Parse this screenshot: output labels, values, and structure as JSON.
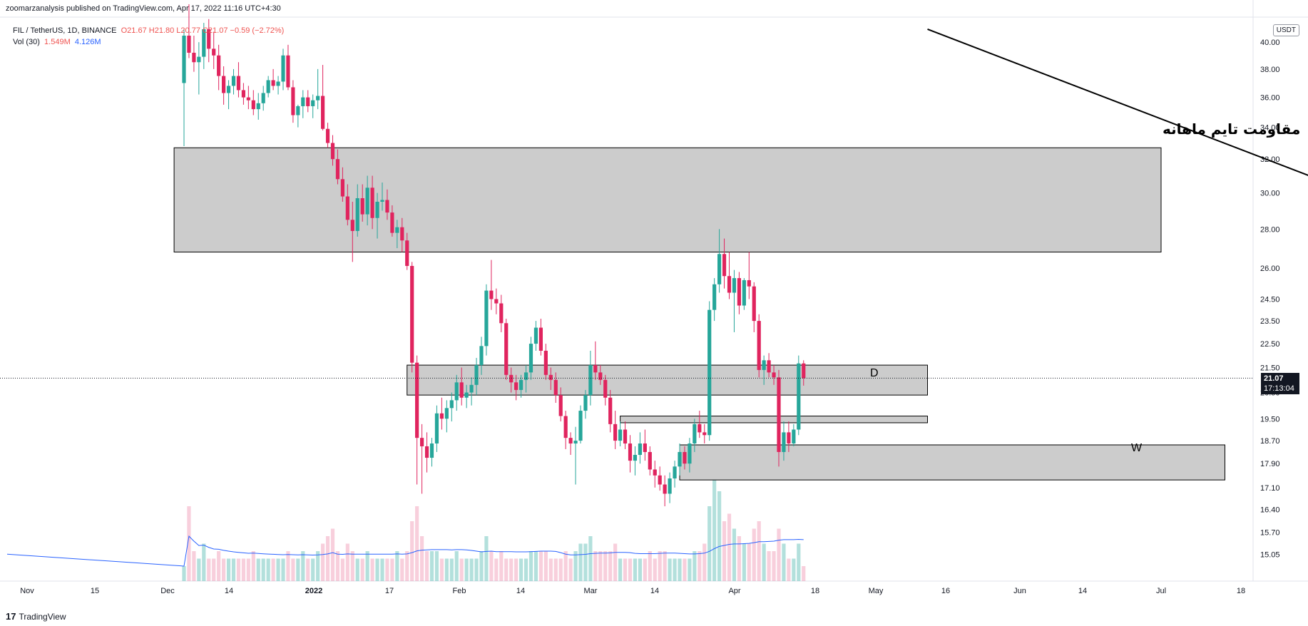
{
  "header": {
    "published": "zoomarzanalysis published on TradingView.com, Apr 17, 2022 11:16 UTC+4:30"
  },
  "legend": {
    "symbol": "FIL / TetherUS, 1D, BINANCE",
    "ohlc": "O21.67 H21.80 L20.77 C21.07 −0.59 (−2.72%)",
    "vol_label": "Vol (30)",
    "vol_value": "1.549M",
    "vol_ma": "4.126M"
  },
  "axis": {
    "currency_badge": "USDT",
    "price_ticks": [
      "40.00",
      "38.00",
      "36.00",
      "34.00",
      "32.00",
      "30.00",
      "28.00",
      "26.00",
      "24.50",
      "23.50",
      "22.50",
      "21.50",
      "20.50",
      "19.50",
      "18.70",
      "17.90",
      "17.10",
      "16.40",
      "15.70",
      "15.05"
    ],
    "time_ticks": [
      "Nov",
      "15",
      "Dec",
      "14",
      "2022",
      "17",
      "Feb",
      "14",
      "Mar",
      "14",
      "Apr",
      "18",
      "May",
      "16",
      "Jun",
      "14",
      "Jul",
      "18"
    ],
    "current_price": "21.07",
    "countdown": "17:13:04"
  },
  "annotations": {
    "resistance_label": "مقاومت تایم ماهانه",
    "zone_d_label": "D",
    "zone_w_label": "W"
  },
  "footer": {
    "brand": "TradingView",
    "logo_glyph": "17"
  },
  "colors": {
    "up": "#26a69a",
    "down": "#e0245e",
    "zone_fill": "#cccccc",
    "vol_ma": "#2962ff"
  },
  "chart_data": {
    "type": "candlestick",
    "symbol": "FIL / TetherUS",
    "interval": "1D",
    "exchange": "BINANCE",
    "scale": "log",
    "ylim": [
      14.7,
      40.5
    ],
    "y_ticks": [
      40,
      38,
      36,
      34,
      32,
      30,
      28,
      26,
      24.5,
      23.5,
      22.5,
      21.5,
      20.5,
      19.5,
      18.7,
      17.9,
      17.1,
      16.4,
      15.7,
      15.05
    ],
    "last": {
      "open": 21.67,
      "high": 21.8,
      "low": 20.77,
      "close": 21.07,
      "change": -0.59,
      "change_pct": -2.72
    },
    "start_date": "2021-12-04",
    "ohlc": [
      [
        37.0,
        41.0,
        32.8,
        40.5
      ],
      [
        40.5,
        43.0,
        38.8,
        39.2
      ],
      [
        39.2,
        40.5,
        37.8,
        38.5
      ],
      [
        38.5,
        40.0,
        36.2,
        38.9
      ],
      [
        38.9,
        41.5,
        38.0,
        41.0
      ],
      [
        41.0,
        41.8,
        38.5,
        39.5
      ],
      [
        39.5,
        40.8,
        38.0,
        39.0
      ],
      [
        39.0,
        39.8,
        36.5,
        37.5
      ],
      [
        37.5,
        38.2,
        35.5,
        36.3
      ],
      [
        36.3,
        37.2,
        35.2,
        36.8
      ],
      [
        36.8,
        38.0,
        36.2,
        37.5
      ],
      [
        37.5,
        38.5,
        36.0,
        36.5
      ],
      [
        36.5,
        37.0,
        35.5,
        36.0
      ],
      [
        36.0,
        36.8,
        35.2,
        35.8
      ],
      [
        35.8,
        36.5,
        34.8,
        35.2
      ],
      [
        35.2,
        36.3,
        34.5,
        35.6
      ],
      [
        35.6,
        36.8,
        35.1,
        36.3
      ],
      [
        36.3,
        37.5,
        36.0,
        37.2
      ],
      [
        37.2,
        38.0,
        36.5,
        36.8
      ],
      [
        36.8,
        37.5,
        36.2,
        37.1
      ],
      [
        37.1,
        39.5,
        36.5,
        39.0
      ],
      [
        39.0,
        39.8,
        36.5,
        36.7
      ],
      [
        36.7,
        37.2,
        34.3,
        34.8
      ],
      [
        34.8,
        35.5,
        34.0,
        35.4
      ],
      [
        35.4,
        36.5,
        34.6,
        36.0
      ],
      [
        36.0,
        36.5,
        35.0,
        35.4
      ],
      [
        35.4,
        36.2,
        34.6,
        35.8
      ],
      [
        35.8,
        38.0,
        35.2,
        36.1
      ],
      [
        36.1,
        38.3,
        33.8,
        33.9
      ],
      [
        33.9,
        34.3,
        32.7,
        33.0
      ],
      [
        33.0,
        33.5,
        31.6,
        32.0
      ],
      [
        32.0,
        32.6,
        30.5,
        30.8
      ],
      [
        30.8,
        31.5,
        29.5,
        29.8
      ],
      [
        29.8,
        30.5,
        28.2,
        28.5
      ],
      [
        28.5,
        29.5,
        26.3,
        27.9
      ],
      [
        27.9,
        30.5,
        27.6,
        29.7
      ],
      [
        29.7,
        30.5,
        28.4,
        28.8
      ],
      [
        28.8,
        31.0,
        28.2,
        30.3
      ],
      [
        30.3,
        31.0,
        28.0,
        28.6
      ],
      [
        28.6,
        30.0,
        27.5,
        29.5
      ],
      [
        29.5,
        30.6,
        29.0,
        29.6
      ],
      [
        29.6,
        30.2,
        28.5,
        28.9
      ],
      [
        28.9,
        29.3,
        27.6,
        27.8
      ],
      [
        27.8,
        28.5,
        27.0,
        28.1
      ],
      [
        28.1,
        28.6,
        26.8,
        27.4
      ],
      [
        27.4,
        27.8,
        25.9,
        26.1
      ],
      [
        26.1,
        26.3,
        21.3,
        21.7
      ],
      [
        21.7,
        22.0,
        17.2,
        18.8
      ],
      [
        18.8,
        19.3,
        16.9,
        18.5
      ],
      [
        18.5,
        19.0,
        17.6,
        18.1
      ],
      [
        18.1,
        18.8,
        17.8,
        18.6
      ],
      [
        18.6,
        20.0,
        18.3,
        19.7
      ],
      [
        19.7,
        20.3,
        19.1,
        19.5
      ],
      [
        19.5,
        20.2,
        19.0,
        19.9
      ],
      [
        19.9,
        20.5,
        19.4,
        20.2
      ],
      [
        20.2,
        21.2,
        19.8,
        20.9
      ],
      [
        20.9,
        21.5,
        20.0,
        20.3
      ],
      [
        20.3,
        20.8,
        19.9,
        20.5
      ],
      [
        20.5,
        21.1,
        20.0,
        20.8
      ],
      [
        20.8,
        21.9,
        20.4,
        21.6
      ],
      [
        21.6,
        22.8,
        21.2,
        22.4
      ],
      [
        22.4,
        25.2,
        22.0,
        24.9
      ],
      [
        24.9,
        26.4,
        24.0,
        24.5
      ],
      [
        24.5,
        25.0,
        23.8,
        24.3
      ],
      [
        24.3,
        24.7,
        23.0,
        23.4
      ],
      [
        23.4,
        23.6,
        21.0,
        21.2
      ],
      [
        21.2,
        21.5,
        20.5,
        20.9
      ],
      [
        20.9,
        21.2,
        20.2,
        20.6
      ],
      [
        20.6,
        21.2,
        20.3,
        21.0
      ],
      [
        21.0,
        21.6,
        20.5,
        21.3
      ],
      [
        21.3,
        22.8,
        21.0,
        22.5
      ],
      [
        22.5,
        23.5,
        22.2,
        23.2
      ],
      [
        23.2,
        23.6,
        22.0,
        22.2
      ],
      [
        22.2,
        22.5,
        21.0,
        21.2
      ],
      [
        21.2,
        21.5,
        20.6,
        21.0
      ],
      [
        21.0,
        21.3,
        20.1,
        20.4
      ],
      [
        20.4,
        20.7,
        19.4,
        19.6
      ],
      [
        19.6,
        19.8,
        18.4,
        18.8
      ],
      [
        18.8,
        19.0,
        18.2,
        18.6
      ],
      [
        18.6,
        19.2,
        17.2,
        18.7
      ],
      [
        18.7,
        20.0,
        18.6,
        19.8
      ],
      [
        19.8,
        20.6,
        19.5,
        20.4
      ],
      [
        20.4,
        22.2,
        20.0,
        21.6
      ],
      [
        21.6,
        22.6,
        21.0,
        21.3
      ],
      [
        21.3,
        21.6,
        20.8,
        21.0
      ],
      [
        21.0,
        21.2,
        20.0,
        20.3
      ],
      [
        20.3,
        20.6,
        19.0,
        19.3
      ],
      [
        19.3,
        19.8,
        18.4,
        18.7
      ],
      [
        18.7,
        19.4,
        18.5,
        19.1
      ],
      [
        19.1,
        19.4,
        18.4,
        18.6
      ],
      [
        18.6,
        18.9,
        17.6,
        18.0
      ],
      [
        18.0,
        18.5,
        17.5,
        18.2
      ],
      [
        18.2,
        19.0,
        17.9,
        18.6
      ],
      [
        18.6,
        19.1,
        18.0,
        18.3
      ],
      [
        18.3,
        18.5,
        17.5,
        17.7
      ],
      [
        17.7,
        18.0,
        17.1,
        17.5
      ],
      [
        17.5,
        17.8,
        17.0,
        17.2
      ],
      [
        17.2,
        17.5,
        16.5,
        16.9
      ],
      [
        16.9,
        17.6,
        16.6,
        17.4
      ],
      [
        17.4,
        18.0,
        17.1,
        17.8
      ],
      [
        17.8,
        18.6,
        17.5,
        18.3
      ],
      [
        18.3,
        18.5,
        17.7,
        17.9
      ],
      [
        17.9,
        18.8,
        17.6,
        18.6
      ],
      [
        18.6,
        19.5,
        18.3,
        19.3
      ],
      [
        19.3,
        19.8,
        18.8,
        19.0
      ],
      [
        19.0,
        19.3,
        18.6,
        18.9
      ],
      [
        18.9,
        24.4,
        18.7,
        24.0
      ],
      [
        24.0,
        25.5,
        23.5,
        25.2
      ],
      [
        25.2,
        28.0,
        24.8,
        26.7
      ],
      [
        26.7,
        27.5,
        25.0,
        25.6
      ],
      [
        25.6,
        26.8,
        24.5,
        24.8
      ],
      [
        24.8,
        25.9,
        23.0,
        25.5
      ],
      [
        25.5,
        25.8,
        23.8,
        24.2
      ],
      [
        24.2,
        25.5,
        24.0,
        25.4
      ],
      [
        25.4,
        26.8,
        24.5,
        25.1
      ],
      [
        25.1,
        25.3,
        23.0,
        23.5
      ],
      [
        23.5,
        23.8,
        21.1,
        21.4
      ],
      [
        21.4,
        22.0,
        20.8,
        21.8
      ],
      [
        21.8,
        22.1,
        21.1,
        21.3
      ],
      [
        21.3,
        21.6,
        20.8,
        21.1
      ],
      [
        21.1,
        21.4,
        17.8,
        18.3
      ],
      [
        18.3,
        19.4,
        18.0,
        19.0
      ],
      [
        19.0,
        19.4,
        18.3,
        18.6
      ],
      [
        18.6,
        19.3,
        18.5,
        19.1
      ],
      [
        19.1,
        22.0,
        18.9,
        21.67
      ],
      [
        21.67,
        21.8,
        20.77,
        21.07
      ]
    ],
    "volume": [
      2,
      10,
      4,
      3,
      5,
      3,
      3,
      4,
      3,
      3,
      3,
      3,
      3,
      3,
      4,
      3,
      3,
      3,
      3,
      3,
      3,
      4,
      3,
      3,
      4,
      3,
      3,
      4,
      5,
      6,
      7,
      4,
      3,
      5,
      4,
      3,
      3,
      4,
      3,
      3,
      3,
      3,
      3,
      4,
      3,
      4,
      8,
      10,
      6,
      4,
      4,
      4,
      3,
      3,
      3,
      4,
      3,
      3,
      3,
      3,
      4,
      6,
      4,
      3,
      4,
      3,
      3,
      3,
      3,
      3,
      4,
      4,
      4,
      4,
      3,
      3,
      3,
      4,
      3,
      4,
      5,
      5,
      6,
      4,
      4,
      4,
      4,
      5,
      3,
      3,
      3,
      3,
      3,
      3,
      4,
      3,
      4,
      4,
      3,
      3,
      3,
      3,
      3,
      4,
      4,
      5,
      10,
      15,
      12,
      8,
      9,
      7,
      6,
      5,
      5,
      7,
      8,
      5,
      4,
      4,
      7,
      5,
      3,
      3,
      5,
      2
    ],
    "zones": [
      {
        "label": "",
        "low": 26.8,
        "high": 32.7,
        "start_index": -2,
        "end_index": "right"
      },
      {
        "label": "D",
        "low": 20.4,
        "high": 21.6,
        "start_index": 45,
        "end_index": 150
      },
      {
        "label": "",
        "low": 19.35,
        "high": 19.6,
        "start_index": 88,
        "end_index": 150
      },
      {
        "label": "W",
        "low": 17.35,
        "high": 18.55,
        "start_index": 100,
        "end_index": 210
      }
    ],
    "trendline": {
      "from": {
        "index": 150,
        "price": 41.0
      },
      "to": {
        "index": 260,
        "price": 27.5
      }
    },
    "current_price": 21.07
  }
}
